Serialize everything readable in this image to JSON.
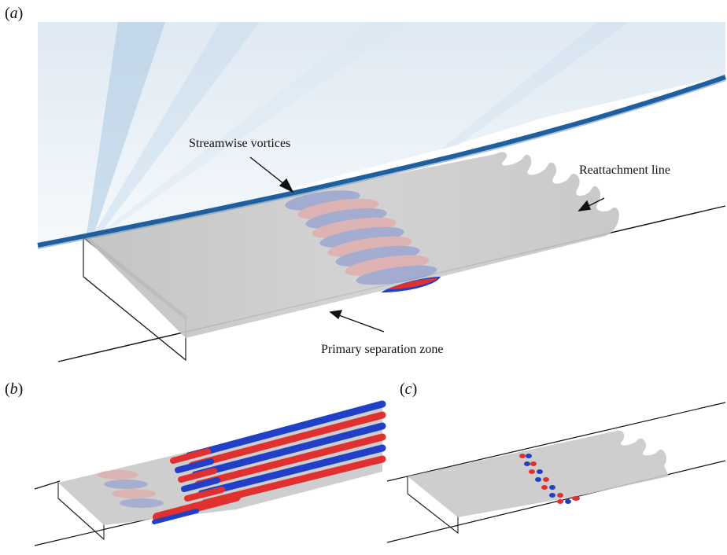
{
  "figure": {
    "panels": [
      {
        "label_open": "(",
        "label_letter": "a",
        "label_close": ")"
      },
      {
        "label_open": "(",
        "label_letter": "b",
        "label_close": ")"
      },
      {
        "label_open": "(",
        "label_letter": "c",
        "label_close": ")"
      }
    ],
    "annotations": {
      "streamwise_vortices": "Streamwise vortices",
      "reattachment_line": "Reattachment line",
      "primary_separation_zone": "Primary separation zone"
    },
    "colors": {
      "shock_blue": "#1f5f9e",
      "surface_grey": "#c9c9c9",
      "positive_red": "#e03030",
      "negative_blue": "#2040c8"
    }
  }
}
